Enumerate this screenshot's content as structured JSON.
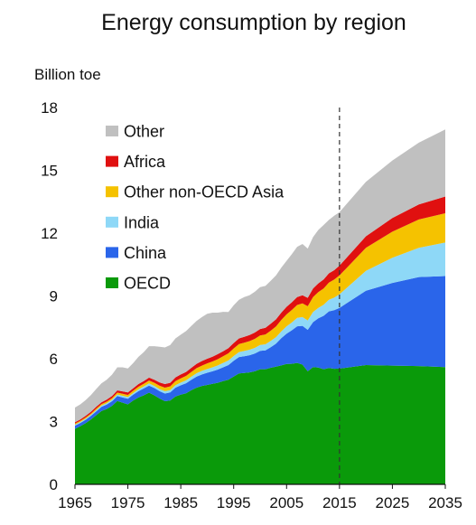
{
  "chart_data": {
    "type": "area",
    "title": "Energy consumption by region",
    "ylabel": "Billion toe",
    "xlabel": "",
    "ylim": [
      0,
      18
    ],
    "xlim": [
      1965,
      2035
    ],
    "yticks": [
      0,
      3,
      6,
      9,
      12,
      15,
      18
    ],
    "xticks": [
      1965,
      1975,
      1985,
      1995,
      2005,
      2015,
      2025,
      2035
    ],
    "grid": false,
    "legend_position": "top-left",
    "projection_line_x": 2015,
    "x": [
      1965,
      1966,
      1967,
      1968,
      1969,
      1970,
      1971,
      1972,
      1973,
      1974,
      1975,
      1976,
      1977,
      1978,
      1979,
      1980,
      1981,
      1982,
      1983,
      1984,
      1985,
      1986,
      1987,
      1988,
      1989,
      1990,
      1991,
      1992,
      1993,
      1994,
      1995,
      1996,
      1997,
      1998,
      1999,
      2000,
      2001,
      2002,
      2003,
      2004,
      2005,
      2006,
      2007,
      2008,
      2009,
      2010,
      2011,
      2012,
      2013,
      2014,
      2015,
      2020,
      2025,
      2030,
      2035
    ],
    "series": [
      {
        "name": "OECD",
        "color": "#0a9a0a",
        "values": [
          2.65,
          2.78,
          2.92,
          3.1,
          3.3,
          3.5,
          3.6,
          3.75,
          3.98,
          3.9,
          3.82,
          4.0,
          4.15,
          4.25,
          4.38,
          4.25,
          4.1,
          3.97,
          4.0,
          4.2,
          4.28,
          4.35,
          4.5,
          4.62,
          4.7,
          4.75,
          4.8,
          4.85,
          4.93,
          5.0,
          5.15,
          5.3,
          5.32,
          5.35,
          5.4,
          5.5,
          5.5,
          5.57,
          5.62,
          5.68,
          5.75,
          5.76,
          5.8,
          5.72,
          5.4,
          5.6,
          5.58,
          5.5,
          5.56,
          5.52,
          5.53,
          5.7,
          5.67,
          5.65,
          5.6
        ]
      },
      {
        "name": "China",
        "color": "#2a65ea",
        "values": [
          0.15,
          0.15,
          0.16,
          0.17,
          0.18,
          0.2,
          0.21,
          0.22,
          0.24,
          0.25,
          0.27,
          0.28,
          0.3,
          0.33,
          0.34,
          0.35,
          0.35,
          0.37,
          0.39,
          0.42,
          0.45,
          0.48,
          0.5,
          0.53,
          0.55,
          0.58,
          0.6,
          0.63,
          0.66,
          0.7,
          0.75,
          0.78,
          0.8,
          0.82,
          0.85,
          0.88,
          0.9,
          0.98,
          1.1,
          1.3,
          1.45,
          1.6,
          1.75,
          1.85,
          1.98,
          2.15,
          2.35,
          2.55,
          2.7,
          2.8,
          2.9,
          3.55,
          3.95,
          4.25,
          4.35
        ]
      },
      {
        "name": "India",
        "color": "#8ed8f7",
        "values": [
          0.05,
          0.05,
          0.05,
          0.05,
          0.06,
          0.06,
          0.06,
          0.07,
          0.07,
          0.08,
          0.08,
          0.08,
          0.09,
          0.09,
          0.1,
          0.1,
          0.1,
          0.11,
          0.11,
          0.12,
          0.13,
          0.14,
          0.15,
          0.16,
          0.17,
          0.18,
          0.19,
          0.2,
          0.21,
          0.22,
          0.23,
          0.24,
          0.25,
          0.26,
          0.27,
          0.28,
          0.29,
          0.3,
          0.31,
          0.33,
          0.35,
          0.37,
          0.4,
          0.42,
          0.45,
          0.48,
          0.5,
          0.53,
          0.56,
          0.6,
          0.65,
          0.95,
          1.2,
          1.4,
          1.6
        ]
      },
      {
        "name": "Other non-OECD Asia",
        "color": "#f5c200",
        "values": [
          0.05,
          0.05,
          0.06,
          0.06,
          0.07,
          0.07,
          0.08,
          0.08,
          0.09,
          0.1,
          0.1,
          0.11,
          0.12,
          0.13,
          0.14,
          0.15,
          0.16,
          0.17,
          0.18,
          0.19,
          0.2,
          0.21,
          0.22,
          0.24,
          0.25,
          0.27,
          0.28,
          0.3,
          0.32,
          0.34,
          0.36,
          0.38,
          0.4,
          0.41,
          0.43,
          0.45,
          0.47,
          0.49,
          0.51,
          0.54,
          0.57,
          0.6,
          0.62,
          0.65,
          0.68,
          0.72,
          0.75,
          0.78,
          0.82,
          0.86,
          0.9,
          1.1,
          1.25,
          1.35,
          1.4
        ]
      },
      {
        "name": "Africa",
        "color": "#e01010",
        "values": [
          0.07,
          0.07,
          0.08,
          0.08,
          0.09,
          0.09,
          0.1,
          0.1,
          0.11,
          0.11,
          0.12,
          0.12,
          0.13,
          0.13,
          0.14,
          0.15,
          0.16,
          0.17,
          0.17,
          0.18,
          0.19,
          0.19,
          0.2,
          0.21,
          0.22,
          0.22,
          0.23,
          0.24,
          0.24,
          0.25,
          0.26,
          0.27,
          0.28,
          0.29,
          0.3,
          0.31,
          0.32,
          0.33,
          0.34,
          0.35,
          0.36,
          0.37,
          0.38,
          0.39,
          0.4,
          0.41,
          0.42,
          0.43,
          0.44,
          0.45,
          0.47,
          0.55,
          0.65,
          0.72,
          0.8
        ]
      },
      {
        "name": "Other",
        "color": "#c0c0c0",
        "values": [
          0.7,
          0.72,
          0.75,
          0.8,
          0.85,
          0.9,
          0.95,
          1.02,
          1.1,
          1.15,
          1.15,
          1.2,
          1.3,
          1.38,
          1.5,
          1.6,
          1.7,
          1.75,
          1.8,
          1.86,
          1.9,
          1.95,
          2.0,
          2.05,
          2.1,
          2.15,
          2.1,
          1.98,
          1.88,
          1.72,
          1.8,
          1.85,
          1.9,
          1.9,
          1.95,
          2.0,
          2.0,
          2.05,
          2.1,
          2.15,
          2.2,
          2.3,
          2.4,
          2.45,
          2.35,
          2.45,
          2.55,
          2.6,
          2.55,
          2.6,
          2.55,
          2.6,
          2.75,
          2.95,
          3.2
        ]
      }
    ]
  }
}
